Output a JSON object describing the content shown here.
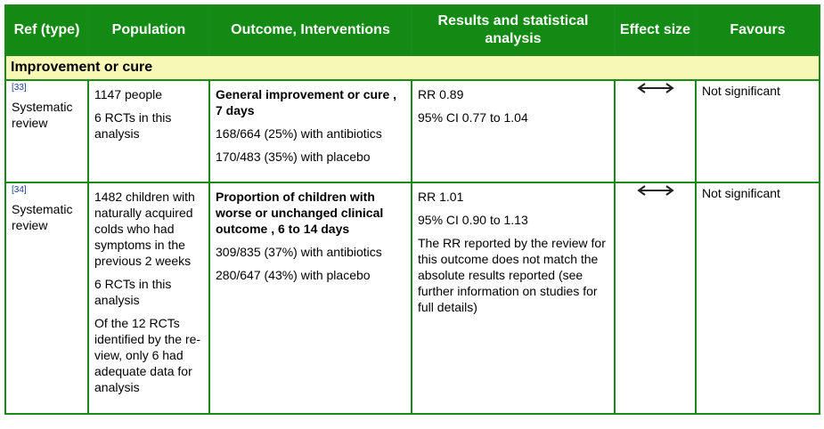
{
  "headers": {
    "ref": "Ref (type)",
    "population": "Population",
    "outcome": "Outcome, Interventions",
    "results": "Results and statistical analysis",
    "effect": "Effect size",
    "favours": "Favours"
  },
  "group_title": "Improvement or cure",
  "rows": [
    {
      "ref": "[33]",
      "type": "Systematic review",
      "population": [
        "1147 people",
        "6 RCTs in this analysis"
      ],
      "outcome_title": "General improvement or cure , 7 days",
      "outcome_lines": [
        "168/664 (25%) with antibiotics",
        "170/483 (35%) with placebo"
      ],
      "results": [
        "RR 0.89",
        "95% CI 0.77 to 1.04"
      ],
      "effect_icon": "double-headed-arrow-icon",
      "favours": "Not significant"
    },
    {
      "ref": "[34]",
      "type": "Systematic review",
      "population": [
        "1482 children with naturally acquired colds who had symptoms in the previous 2 weeks",
        "6 RCTs in this analysis",
        "Of the 12 RCTs identified by the re-view, only 6 had adequate data for analysis"
      ],
      "outcome_title": "Proportion of children with worse or unchanged clinical outcome , 6 to 14 days",
      "outcome_lines": [
        "309/835 (37%) with antibiotics",
        "280/647 (43%) with placebo"
      ],
      "results": [
        "RR 1.01",
        "95% CI 0.90 to 1.13",
        "The RR reported by the review for this outcome does not match the absolute results reported (see further information on studies for full details)"
      ],
      "effect_icon": "double-headed-arrow-icon",
      "favours": "Not significant"
    }
  ]
}
